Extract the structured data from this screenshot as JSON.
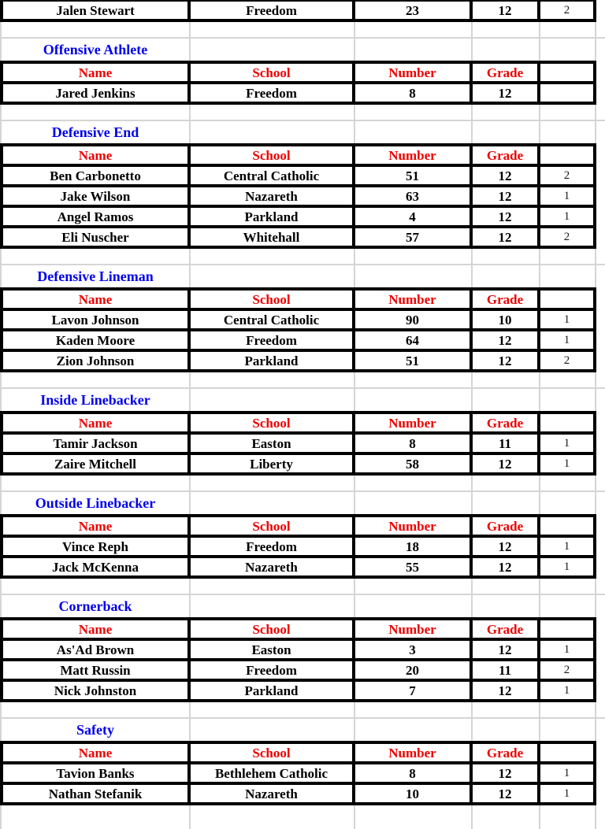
{
  "colors": {
    "section_title_blue": "#0000ee",
    "column_header_red": "#ee0000",
    "cell_text_black": "#000000",
    "table_border_black": "#000000",
    "gridline_gray": "#d5d5d5"
  },
  "columns": [
    "Name",
    "School",
    "Number",
    "Grade",
    ""
  ],
  "top_partial_row": {
    "name": "Jalen Stewart",
    "school": "Freedom",
    "number": "23",
    "grade": "12",
    "extra": "2"
  },
  "sections": [
    {
      "title": "Offensive Athlete",
      "rows": [
        {
          "name": "Jared Jenkins",
          "school": "Freedom",
          "number": "8",
          "grade": "12",
          "extra": ""
        }
      ]
    },
    {
      "title": "Defensive End",
      "rows": [
        {
          "name": "Ben Carbonetto",
          "school": "Central Catholic",
          "number": "51",
          "grade": "12",
          "extra": "2"
        },
        {
          "name": "Jake Wilson",
          "school": "Nazareth",
          "number": "63",
          "grade": "12",
          "extra": "1"
        },
        {
          "name": "Angel Ramos",
          "school": "Parkland",
          "number": "4",
          "grade": "12",
          "extra": "1"
        },
        {
          "name": "Eli Nuscher",
          "school": "Whitehall",
          "number": "57",
          "grade": "12",
          "extra": "2"
        }
      ]
    },
    {
      "title": "Defensive Lineman",
      "rows": [
        {
          "name": "Lavon Johnson",
          "school": "Central Catholic",
          "number": "90",
          "grade": "10",
          "extra": "1"
        },
        {
          "name": "Kaden Moore",
          "school": "Freedom",
          "number": "64",
          "grade": "12",
          "extra": "1"
        },
        {
          "name": "Zion Johnson",
          "school": "Parkland",
          "number": "51",
          "grade": "12",
          "extra": "2"
        }
      ]
    },
    {
      "title": "Inside Linebacker",
      "rows": [
        {
          "name": "Tamir Jackson",
          "school": "Easton",
          "number": "8",
          "grade": "11",
          "extra": "1"
        },
        {
          "name": "Zaire Mitchell",
          "school": "Liberty",
          "number": "58",
          "grade": "12",
          "extra": "1"
        }
      ]
    },
    {
      "title": "Outside Linebacker",
      "rows": [
        {
          "name": "Vince Reph",
          "school": "Freedom",
          "number": "18",
          "grade": "12",
          "extra": "1"
        },
        {
          "name": "Jack McKenna",
          "school": "Nazareth",
          "number": "55",
          "grade": "12",
          "extra": "1"
        }
      ]
    },
    {
      "title": "Cornerback",
      "rows": [
        {
          "name": "As'Ad Brown",
          "school": "Easton",
          "number": "3",
          "grade": "12",
          "extra": "1"
        },
        {
          "name": "Matt Russin",
          "school": "Freedom",
          "number": "20",
          "grade": "11",
          "extra": "2"
        },
        {
          "name": "Nick Johnston",
          "school": "Parkland",
          "number": "7",
          "grade": "12",
          "extra": "1"
        }
      ]
    },
    {
      "title": "Safety",
      "rows": [
        {
          "name": "Tavion Banks",
          "school": "Bethlehem Catholic",
          "number": "8",
          "grade": "12",
          "extra": "1"
        },
        {
          "name": "Nathan Stefanik",
          "school": "Nazareth",
          "number": "10",
          "grade": "12",
          "extra": "1"
        }
      ]
    }
  ]
}
